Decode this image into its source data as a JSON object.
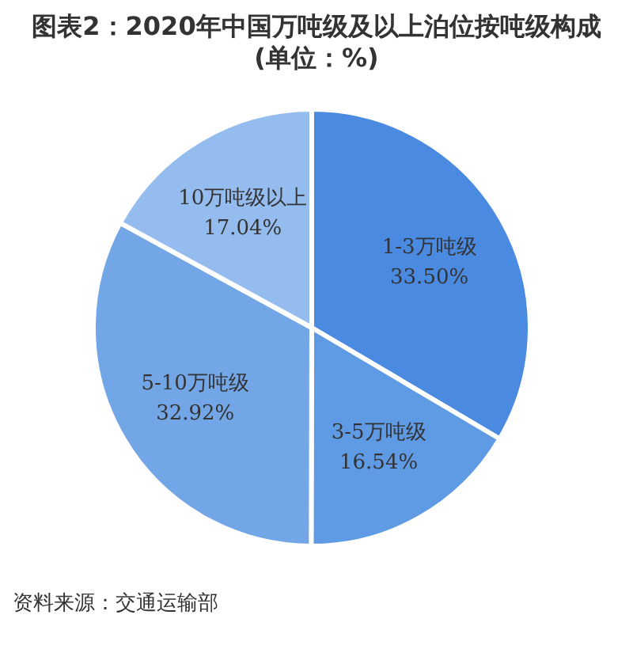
{
  "chart_data": {
    "type": "pie",
    "title": "图表2：2020年中国万吨级及以上泊位按吨级构成(单位：%)",
    "categories": [
      "1-3万吨级",
      "3-5万吨级",
      "5-10万吨级",
      "10万吨级以上"
    ],
    "values": [
      33.5,
      16.54,
      32.92,
      17.04
    ],
    "colors": [
      "#4a8ae0",
      "#5f9ae4",
      "#72a6e6",
      "#95bcee"
    ],
    "value_labels": [
      "33.50%",
      "16.54%",
      "32.92%",
      "17.04%"
    ],
    "annotations": [
      "资料来源：交通运输部"
    ]
  }
}
